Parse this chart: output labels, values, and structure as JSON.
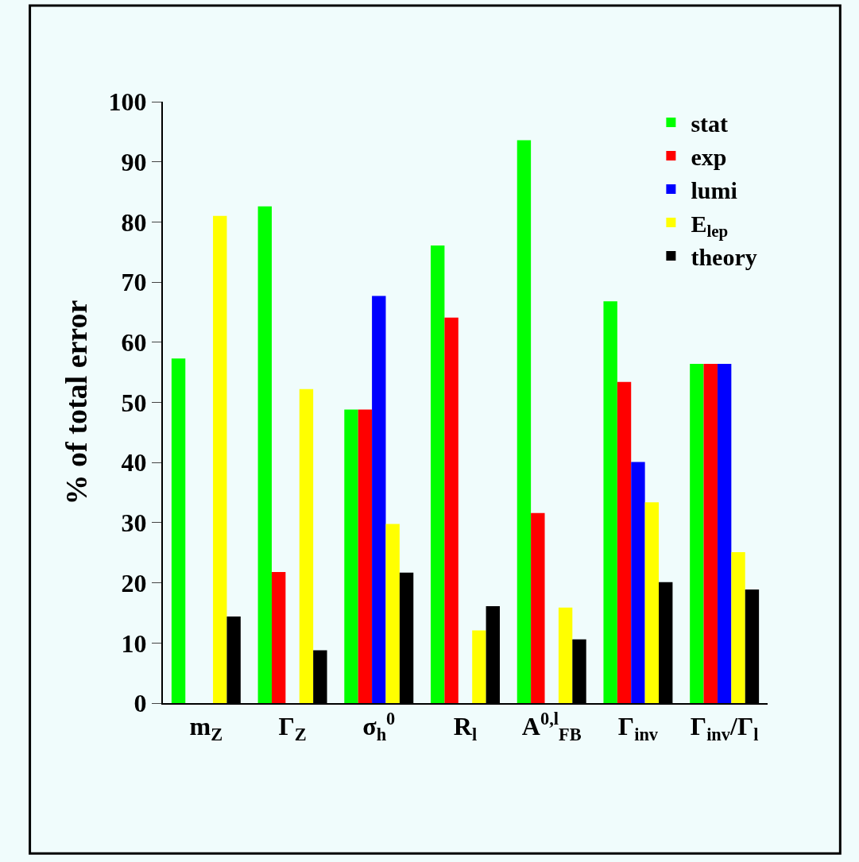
{
  "chart_data": {
    "type": "bar",
    "ylabel": "% of total error",
    "categories": [
      "m$_{Z}$",
      "Γ$_{Z}$",
      "σ$_{h}$$^{0}$",
      "R$_{l}$",
      "A$^{0,l}$$_{FB}$",
      "Γ$_{inv}$",
      "Γ$_{inv}$/Γ$_{l}$"
    ],
    "series": [
      {
        "name": "stat",
        "color": "#00ff00",
        "values": [
          57.3,
          82.6,
          48.8,
          76.1,
          93.6,
          66.8,
          56.4
        ]
      },
      {
        "name": "exp",
        "color": "#ff0000",
        "values": [
          null,
          21.8,
          48.8,
          64.1,
          31.6,
          53.4,
          56.4
        ]
      },
      {
        "name": "lumi",
        "color": "#0000ff",
        "values": [
          null,
          null,
          67.7,
          null,
          null,
          40.1,
          56.4
        ]
      },
      {
        "name": "E$_{lep}$",
        "color": "#ffff00",
        "values": [
          81.0,
          52.2,
          29.8,
          12.1,
          15.9,
          33.4,
          25.1
        ]
      },
      {
        "name": "theory",
        "color": "#000000",
        "values": [
          14.4,
          8.8,
          21.7,
          16.1,
          10.6,
          20.1,
          18.9
        ]
      }
    ],
    "ylim": [
      0,
      100
    ],
    "yticks": [
      0,
      10,
      20,
      30,
      40,
      50,
      60,
      70,
      80,
      90,
      100
    ],
    "grid": false,
    "legend": "top right"
  }
}
